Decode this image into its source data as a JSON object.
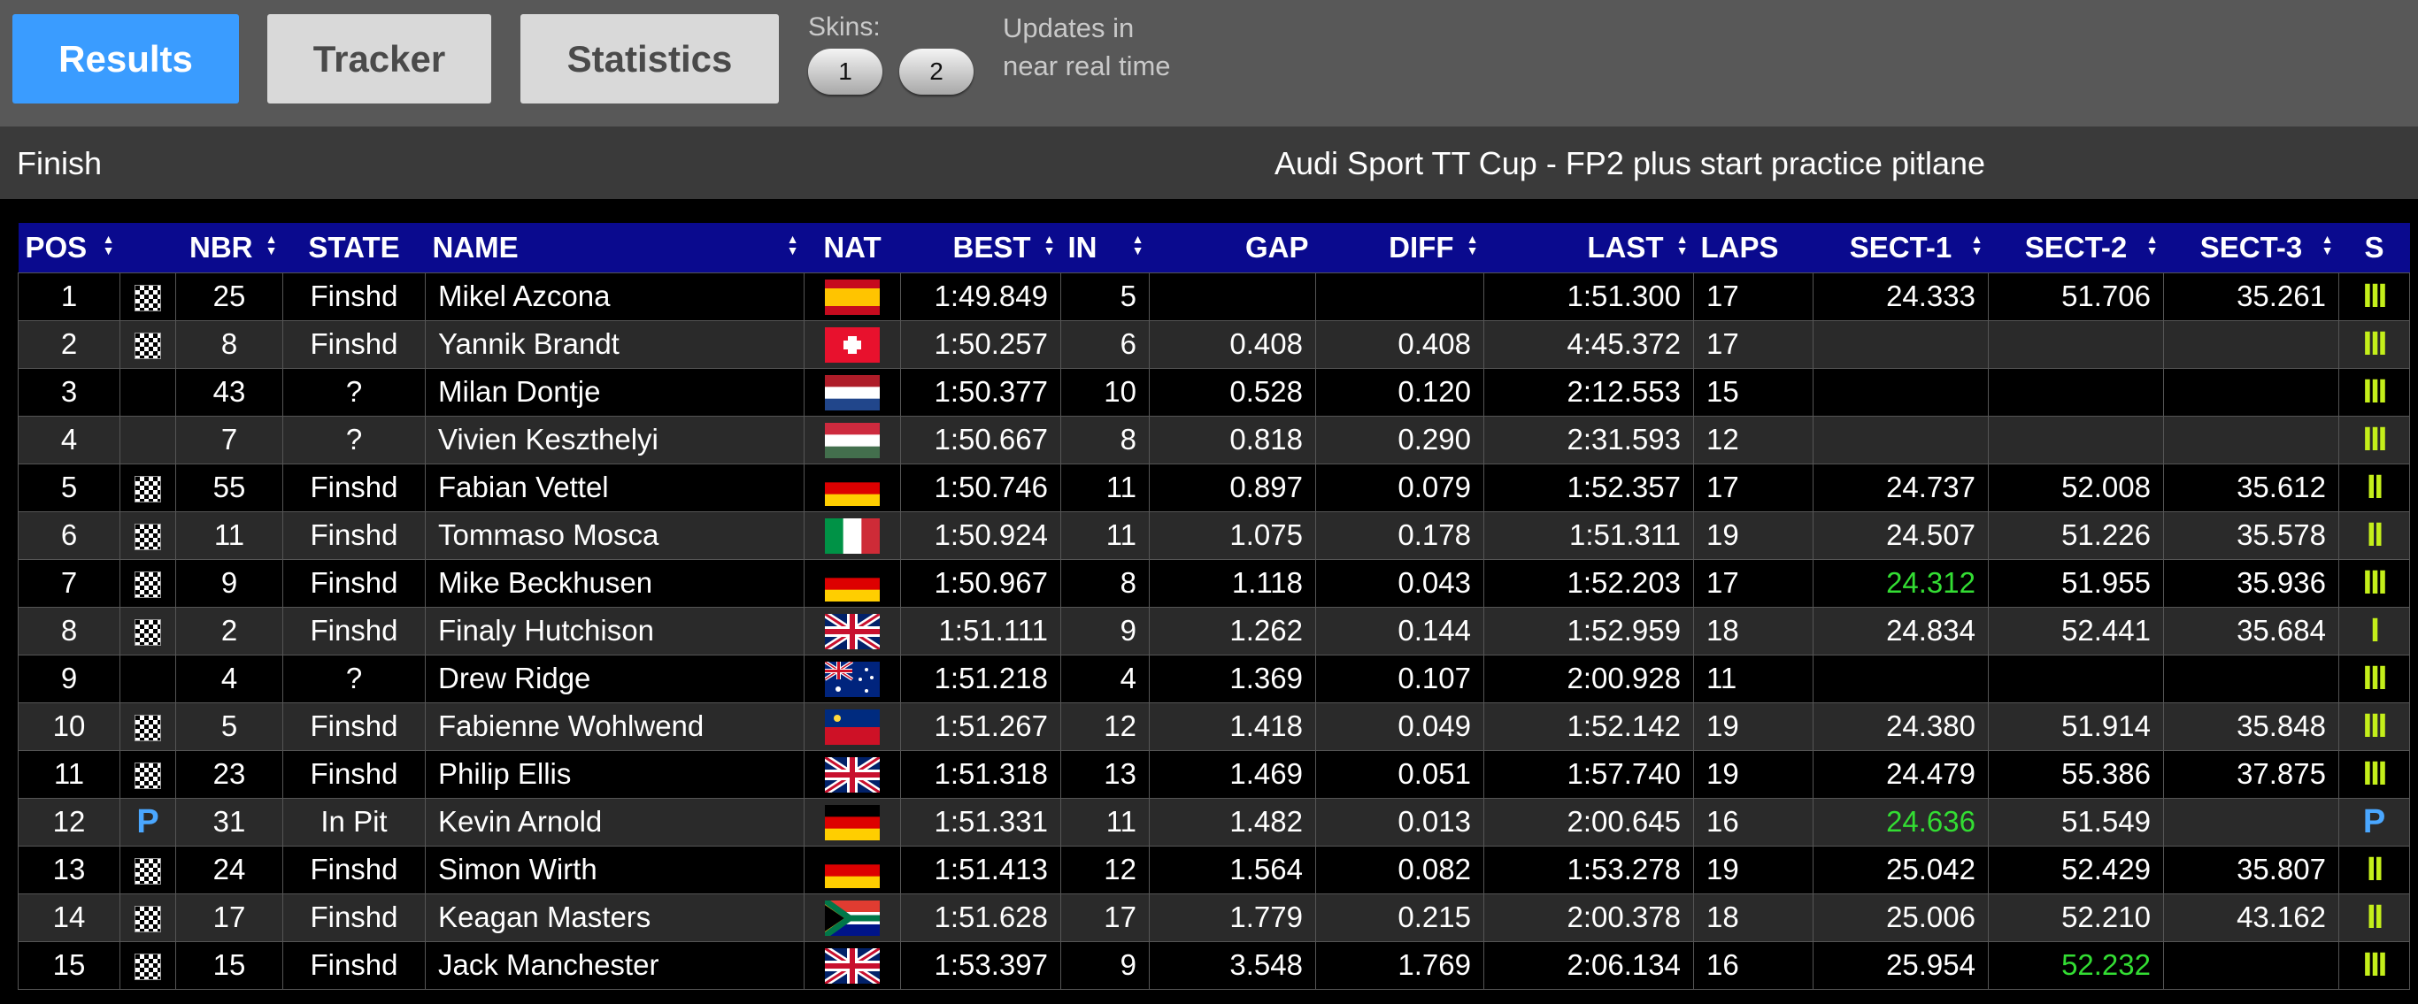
{
  "toolbar": {
    "results_label": "Results",
    "tracker_label": "Tracker",
    "statistics_label": "Statistics",
    "skins_label": "Skins:",
    "skin_buttons": [
      "1",
      "2"
    ],
    "updates_text_line1": "Updates in",
    "updates_text_line2": "near real time",
    "active_color": "#3a9cff"
  },
  "info": {
    "status": "Finish",
    "session": "Audi Sport TT Cup - FP2 plus start practice pitlane"
  },
  "table": {
    "columns": [
      "POS",
      "NBR",
      "STATE",
      "NAME",
      "NAT",
      "BEST",
      "IN",
      "GAP",
      "DIFF",
      "LAST",
      "LAPS",
      "SECT-1",
      "SECT-2",
      "SECT-3",
      "S"
    ],
    "rows": [
      {
        "pos": "1",
        "icon": "checkered-flag",
        "nbr": "25",
        "state": "Finshd",
        "name": "Mikel Azcona",
        "nat": "ESP",
        "best": "1:49.849",
        "in": "5",
        "gap": "",
        "diff": "",
        "last": "1:51.300",
        "laps": "17",
        "s1": "24.333",
        "s2": "51.706",
        "s3": "35.261",
        "s": "III",
        "s1_best": false,
        "s2_best": false
      },
      {
        "pos": "2",
        "icon": "checkered-flag",
        "nbr": "8",
        "state": "Finshd",
        "name": "Yannik Brandt",
        "nat": "SUI",
        "best": "1:50.257",
        "in": "6",
        "gap": "0.408",
        "diff": "0.408",
        "last": "4:45.372",
        "laps": "17",
        "s1": "",
        "s2": "",
        "s3": "",
        "s": "III",
        "s1_best": false,
        "s2_best": false
      },
      {
        "pos": "3",
        "icon": "",
        "nbr": "43",
        "state": "?",
        "name": "Milan Dontje",
        "nat": "NED",
        "best": "1:50.377",
        "in": "10",
        "gap": "0.528",
        "diff": "0.120",
        "last": "2:12.553",
        "laps": "15",
        "s1": "",
        "s2": "",
        "s3": "",
        "s": "III",
        "s1_best": false,
        "s2_best": false
      },
      {
        "pos": "4",
        "icon": "",
        "nbr": "7",
        "state": "?",
        "name": "Vivien Keszthelyi",
        "nat": "HUN",
        "best": "1:50.667",
        "in": "8",
        "gap": "0.818",
        "diff": "0.290",
        "last": "2:31.593",
        "laps": "12",
        "s1": "",
        "s2": "",
        "s3": "",
        "s": "III",
        "s1_best": false,
        "s2_best": false
      },
      {
        "pos": "5",
        "icon": "checkered-flag",
        "nbr": "55",
        "state": "Finshd",
        "name": "Fabian Vettel",
        "nat": "GER",
        "best": "1:50.746",
        "in": "11",
        "gap": "0.897",
        "diff": "0.079",
        "last": "1:52.357",
        "laps": "17",
        "s1": "24.737",
        "s2": "52.008",
        "s3": "35.612",
        "s": "II",
        "s1_best": false,
        "s2_best": false
      },
      {
        "pos": "6",
        "icon": "checkered-flag",
        "nbr": "11",
        "state": "Finshd",
        "name": "Tommaso Mosca",
        "nat": "ITA",
        "best": "1:50.924",
        "in": "11",
        "gap": "1.075",
        "diff": "0.178",
        "last": "1:51.311",
        "laps": "19",
        "s1": "24.507",
        "s2": "51.226",
        "s3": "35.578",
        "s": "II",
        "s1_best": false,
        "s2_best": false
      },
      {
        "pos": "7",
        "icon": "checkered-flag",
        "nbr": "9",
        "state": "Finshd",
        "name": "Mike Beckhusen",
        "nat": "GER",
        "best": "1:50.967",
        "in": "8",
        "gap": "1.118",
        "diff": "0.043",
        "last": "1:52.203",
        "laps": "17",
        "s1": "24.312",
        "s2": "51.955",
        "s3": "35.936",
        "s": "III",
        "s1_best": true,
        "s2_best": false
      },
      {
        "pos": "8",
        "icon": "checkered-flag",
        "nbr": "2",
        "state": "Finshd",
        "name": "Finaly Hutchison",
        "nat": "GBR",
        "best": "1:51.111",
        "in": "9",
        "gap": "1.262",
        "diff": "0.144",
        "last": "1:52.959",
        "laps": "18",
        "s1": "24.834",
        "s2": "52.441",
        "s3": "35.684",
        "s": "I",
        "s1_best": false,
        "s2_best": false
      },
      {
        "pos": "9",
        "icon": "",
        "nbr": "4",
        "state": "?",
        "name": "Drew Ridge",
        "nat": "AUS",
        "best": "1:51.218",
        "in": "4",
        "gap": "1.369",
        "diff": "0.107",
        "last": "2:00.928",
        "laps": "11",
        "s1": "",
        "s2": "",
        "s3": "",
        "s": "III",
        "s1_best": false,
        "s2_best": false
      },
      {
        "pos": "10",
        "icon": "checkered-flag",
        "nbr": "5",
        "state": "Finshd",
        "name": "Fabienne Wohlwend",
        "nat": "LIE",
        "best": "1:51.267",
        "in": "12",
        "gap": "1.418",
        "diff": "0.049",
        "last": "1:52.142",
        "laps": "19",
        "s1": "24.380",
        "s2": "51.914",
        "s3": "35.848",
        "s": "III",
        "s1_best": false,
        "s2_best": false
      },
      {
        "pos": "11",
        "icon": "checkered-flag",
        "nbr": "23",
        "state": "Finshd",
        "name": "Philip Ellis",
        "nat": "GBR",
        "best": "1:51.318",
        "in": "13",
        "gap": "1.469",
        "diff": "0.051",
        "last": "1:57.740",
        "laps": "19",
        "s1": "24.479",
        "s2": "55.386",
        "s3": "37.875",
        "s": "III",
        "s1_best": false,
        "s2_best": false
      },
      {
        "pos": "12",
        "icon": "pit",
        "nbr": "31",
        "state": "In Pit",
        "name": "Kevin Arnold",
        "nat": "GER",
        "best": "1:51.331",
        "in": "11",
        "gap": "1.482",
        "diff": "0.013",
        "last": "2:00.645",
        "laps": "16",
        "s1": "24.636",
        "s2": "51.549",
        "s3": "",
        "s": "P",
        "s1_best": true,
        "s2_best": false
      },
      {
        "pos": "13",
        "icon": "checkered-flag",
        "nbr": "24",
        "state": "Finshd",
        "name": "Simon Wirth",
        "nat": "GER",
        "best": "1:51.413",
        "in": "12",
        "gap": "1.564",
        "diff": "0.082",
        "last": "1:53.278",
        "laps": "19",
        "s1": "25.042",
        "s2": "52.429",
        "s3": "35.807",
        "s": "II",
        "s1_best": false,
        "s2_best": false
      },
      {
        "pos": "14",
        "icon": "checkered-flag",
        "nbr": "17",
        "state": "Finshd",
        "name": "Keagan Masters",
        "nat": "RSA",
        "best": "1:51.628",
        "in": "17",
        "gap": "1.779",
        "diff": "0.215",
        "last": "2:00.378",
        "laps": "18",
        "s1": "25.006",
        "s2": "52.210",
        "s3": "43.162",
        "s": "II",
        "s1_best": false,
        "s2_best": false
      },
      {
        "pos": "15",
        "icon": "checkered-flag",
        "nbr": "15",
        "state": "Finshd",
        "name": "Jack Manchester",
        "nat": "GBR",
        "best": "1:53.397",
        "in": "9",
        "gap": "3.548",
        "diff": "1.769",
        "last": "2:06.134",
        "laps": "16",
        "s1": "25.954",
        "s2": "52.232",
        "s3": "",
        "s": "III",
        "s1_best": false,
        "s2_best": true
      }
    ]
  },
  "colors": {
    "header_bg": "#0a0a8e",
    "best_sector": "#33dd33",
    "sector_bars": "#c4ef1a",
    "pit_indicator": "#4aa7ff"
  }
}
